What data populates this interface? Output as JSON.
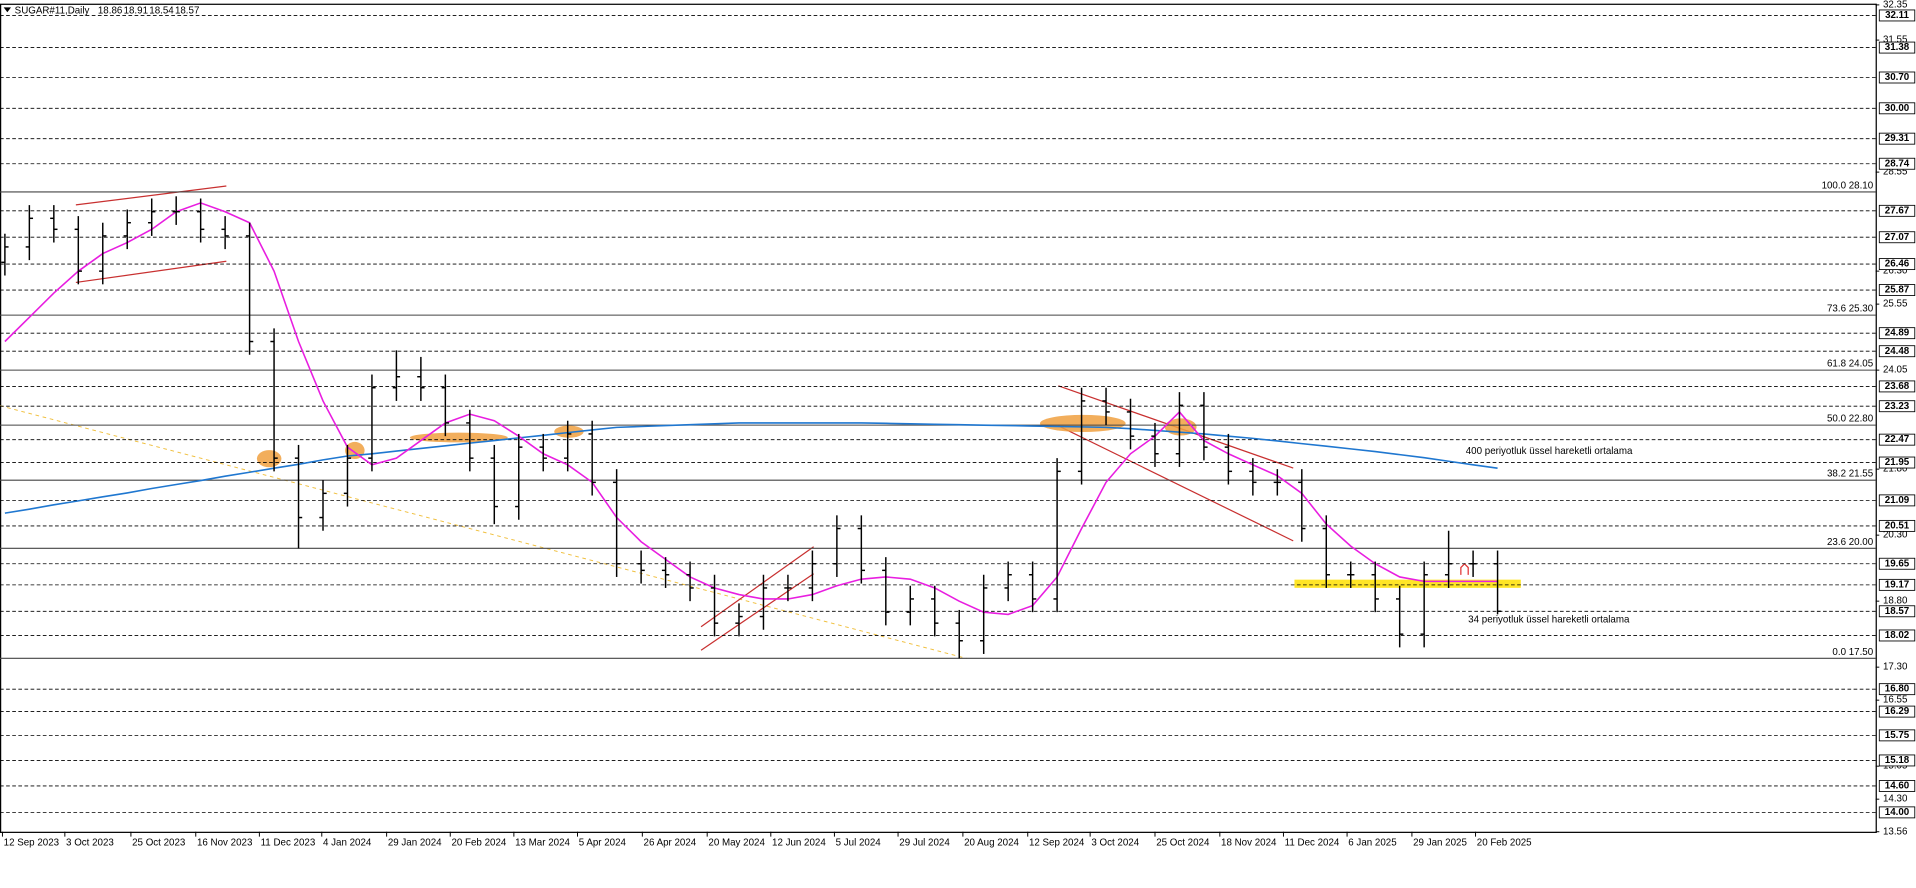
{
  "chart_data": {
    "type": "candlestick",
    "title": "SUGAR#11,Daily",
    "last_bar": [
      18.86,
      18.91,
      18.54,
      18.57
    ],
    "open": [
      26.5,
      26.85,
      27.5,
      27.25,
      26.3,
      27.1,
      27.4,
      27.65,
      27.65,
      27.25,
      27.1,
      24.7,
      22.05,
      20.7,
      21.25,
      22.05,
      23.65,
      23.9,
      23.65,
      22.85,
      22.05,
      20.95,
      22.3,
      22.05,
      22.6,
      21.5,
      19.65,
      19.5,
      19.4,
      19.1,
      18.3,
      18.45,
      19.1,
      19.1,
      19.65,
      20.45,
      19.5,
      18.55,
      18.85,
      18.3,
      17.9,
      19.1,
      19.4,
      18.85,
      21.75,
      23.35,
      23.1,
      22.55,
      22.15,
      23.25,
      22.3,
      21.75,
      21.5,
      21.5,
      20.45,
      19.4,
      19.4,
      18.85,
      18.05,
      19.4,
      19.65,
      19.65
    ],
    "high": [
      27.15,
      27.8,
      27.8,
      27.55,
      27.4,
      27.7,
      27.95,
      28.0,
      27.95,
      27.55,
      27.4,
      25.0,
      22.35,
      21.55,
      22.35,
      23.95,
      24.5,
      24.35,
      23.95,
      23.15,
      22.35,
      22.6,
      22.6,
      22.9,
      22.9,
      21.8,
      19.95,
      19.8,
      19.7,
      19.4,
      18.75,
      19.4,
      19.4,
      19.95,
      20.75,
      20.75,
      19.8,
      19.15,
      19.15,
      18.6,
      19.4,
      19.7,
      19.7,
      22.05,
      23.65,
      23.65,
      23.4,
      22.85,
      23.55,
      23.55,
      22.6,
      22.05,
      21.8,
      21.8,
      20.75,
      19.7,
      19.7,
      19.15,
      19.7,
      20.4,
      19.95,
      19.95
    ],
    "low": [
      26.2,
      26.55,
      26.95,
      26.0,
      26.0,
      26.8,
      27.1,
      27.35,
      26.95,
      26.8,
      24.4,
      21.75,
      20.0,
      20.4,
      20.95,
      21.75,
      23.35,
      23.35,
      22.55,
      21.75,
      20.55,
      20.65,
      21.75,
      21.75,
      21.2,
      19.35,
      19.2,
      19.1,
      18.8,
      18.0,
      18.0,
      18.15,
      18.8,
      18.8,
      19.35,
      19.2,
      18.25,
      18.25,
      18.0,
      17.5,
      17.6,
      18.8,
      18.55,
      18.55,
      21.45,
      22.8,
      22.25,
      21.85,
      21.85,
      22.0,
      21.45,
      21.2,
      21.2,
      20.15,
      19.1,
      19.1,
      18.55,
      17.75,
      17.75,
      19.1,
      19.35,
      18.5
    ],
    "close": [
      26.85,
      27.5,
      27.25,
      26.3,
      27.1,
      27.4,
      27.65,
      27.65,
      27.25,
      27.1,
      24.7,
      22.05,
      20.7,
      21.25,
      22.05,
      23.65,
      23.9,
      23.65,
      22.85,
      22.05,
      20.95,
      22.3,
      22.05,
      22.6,
      21.5,
      19.65,
      19.5,
      19.4,
      19.1,
      18.3,
      18.45,
      19.1,
      19.1,
      19.65,
      20.45,
      19.5,
      18.55,
      18.85,
      18.3,
      17.9,
      19.1,
      19.4,
      18.85,
      21.75,
      23.35,
      23.1,
      22.55,
      22.15,
      23.25,
      22.3,
      21.75,
      21.5,
      21.5,
      20.45,
      19.4,
      19.4,
      18.85,
      18.05,
      19.4,
      19.65,
      19.65,
      18.57
    ],
    "lines": [
      {
        "name": "400 periyotluk üssel hareketli ortalama",
        "color": "#1f77d0",
        "values": [
          20.8,
          20.89,
          20.99,
          21.08,
          21.17,
          21.26,
          21.36,
          21.45,
          21.54,
          21.64,
          21.73,
          21.82,
          21.91,
          22.01,
          22.1,
          22.15,
          22.21,
          22.27,
          22.33,
          22.39,
          22.45,
          22.51,
          22.57,
          22.63,
          22.69,
          22.75,
          22.77,
          22.79,
          22.81,
          22.83,
          22.85,
          22.85,
          22.85,
          22.85,
          22.85,
          22.85,
          22.84,
          22.83,
          22.82,
          22.81,
          22.8,
          22.79,
          22.78,
          22.77,
          22.76,
          22.75,
          22.72,
          22.68,
          22.64,
          22.6,
          22.55,
          22.5,
          22.44,
          22.38,
          22.32,
          22.26,
          22.2,
          22.13,
          22.06,
          21.98,
          21.9,
          21.82
        ]
      },
      {
        "name": "34 periyotluk üssel hareketli ortalama",
        "color": "#e81ee0",
        "values": [
          24.7,
          25.25,
          25.8,
          26.3,
          26.7,
          26.95,
          27.25,
          27.65,
          27.85,
          27.65,
          27.4,
          26.3,
          24.7,
          23.35,
          22.3,
          21.9,
          22.05,
          22.45,
          22.85,
          23.05,
          22.9,
          22.55,
          22.15,
          21.9,
          21.5,
          20.7,
          20.15,
          19.75,
          19.35,
          19.1,
          18.95,
          18.85,
          18.85,
          18.95,
          19.15,
          19.3,
          19.35,
          19.3,
          19.1,
          18.8,
          18.55,
          18.5,
          18.7,
          19.35,
          20.45,
          21.5,
          22.15,
          22.55,
          23.1,
          22.45,
          22.15,
          21.9,
          21.65,
          21.25,
          20.55,
          20.05,
          19.65,
          19.35,
          19.25,
          19.25,
          19.25,
          19.25
        ]
      }
    ],
    "fib_levels": [
      {
        "value": 28.1,
        "label": "100.0 28.10"
      },
      {
        "value": 25.3,
        "label": "73.6 25.30"
      },
      {
        "value": 24.05,
        "label": "61.8 24.05"
      },
      {
        "value": 22.8,
        "label": "50.0 22.80"
      },
      {
        "value": 21.55,
        "label": "38.2 21.55"
      },
      {
        "value": 20.0,
        "label": "23.6 20.00"
      },
      {
        "value": 17.5,
        "label": "0.0 17.50"
      }
    ],
    "levels": [
      32.11,
      31.38,
      {
        "value": 30.7,
        "label": "30.70"
      },
      {
        "value": 30.0,
        "label": "30.00"
      },
      29.31,
      28.74,
      27.67,
      27.07,
      26.46,
      25.87,
      24.89,
      24.48,
      23.68,
      23.23,
      22.47,
      21.95,
      21.09,
      20.51,
      19.65,
      19.17,
      18.57,
      18.02,
      {
        "value": 16.8,
        "label": "16.80"
      },
      16.29,
      15.75,
      15.18,
      {
        "value": 14.6,
        "label": "14.60"
      },
      {
        "value": 14.0,
        "label": "14.00"
      }
    ],
    "xlim": [
      -0.2,
      76.45
    ],
    "xticks": [
      {
        "value": -0.1,
        "label": "12 Sep 2023"
      },
      {
        "value": 2.45,
        "label": "3 Oct 2023"
      },
      {
        "value": 5.15,
        "label": "25 Oct 2023"
      },
      {
        "value": 7.8,
        "label": "16 Nov 2023"
      },
      {
        "value": 10.4,
        "label": "11 Dec 2023"
      },
      {
        "value": 12.95,
        "label": "4 Jan 2024"
      },
      {
        "value": 15.6,
        "label": "29 Jan 2024"
      },
      {
        "value": 18.2,
        "label": "20 Feb 2024"
      },
      {
        "value": 20.8,
        "label": "13 Mar 2024"
      },
      {
        "value": 23.4,
        "label": "5 Apr 2024"
      },
      {
        "value": 26.05,
        "label": "26 Apr 2024"
      },
      {
        "value": 28.7,
        "label": "20 May 2024"
      },
      {
        "value": 31.3,
        "label": "12 Jun 2024"
      },
      {
        "value": 33.9,
        "label": "5 Jul 2024"
      },
      {
        "value": 36.5,
        "label": "29 Jul 2024"
      },
      {
        "value": 39.15,
        "label": "20 Aug 2024"
      },
      {
        "value": 41.8,
        "label": "12 Sep 2024"
      },
      {
        "value": 44.35,
        "label": "3 Oct 2024"
      },
      {
        "value": 47,
        "label": "25 Oct 2024"
      },
      {
        "value": 49.65,
        "label": "18 Nov 2024"
      },
      {
        "value": 52.25,
        "label": "11 Dec 2024"
      },
      {
        "value": 54.85,
        "label": "6 Jan 2025"
      },
      {
        "value": 57.5,
        "label": "29 Jan 2025"
      },
      {
        "value": 60.1,
        "label": "20 Feb 2025"
      }
    ],
    "ylim": [
      13.56,
      32.35
    ],
    "yticks": [
      32.35,
      31.55,
      28.55,
      {
        "value": 26.3,
        "label": "26.30"
      },
      25.55,
      24.05,
      {
        "value": 21.8,
        "label": "21.80"
      },
      {
        "value": 20.3,
        "label": "20.30"
      },
      {
        "value": 18.8,
        "label": "18.80"
      },
      {
        "value": 17.3,
        "label": "17.30"
      },
      16.55,
      15.05,
      {
        "value": 14.3,
        "label": "14.30"
      },
      13.56
    ]
  }
}
